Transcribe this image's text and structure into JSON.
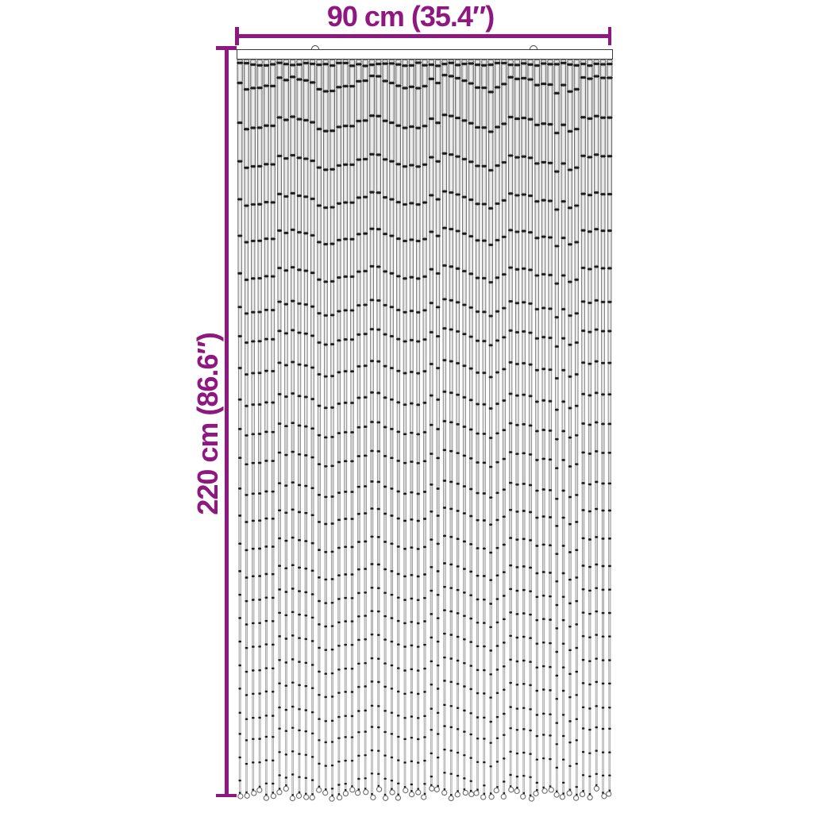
{
  "page": {
    "background_color": "#ffffff"
  },
  "dimensions": {
    "width_label": "90 cm (35.4″)",
    "height_label": "220 cm (86.6″)",
    "line_color": "#8E187F"
  },
  "curtain": {
    "strand_count": 57,
    "rail_color": "#ffffff",
    "rail_border_color": "#3c3c3c",
    "bead_fill": "#d8d8d8",
    "bead_edge": "#575757",
    "joint_color": "#1d1d1d",
    "highlight_color": "#f5f5f5",
    "loop_color": "#6e6e6e",
    "seed": 11
  }
}
